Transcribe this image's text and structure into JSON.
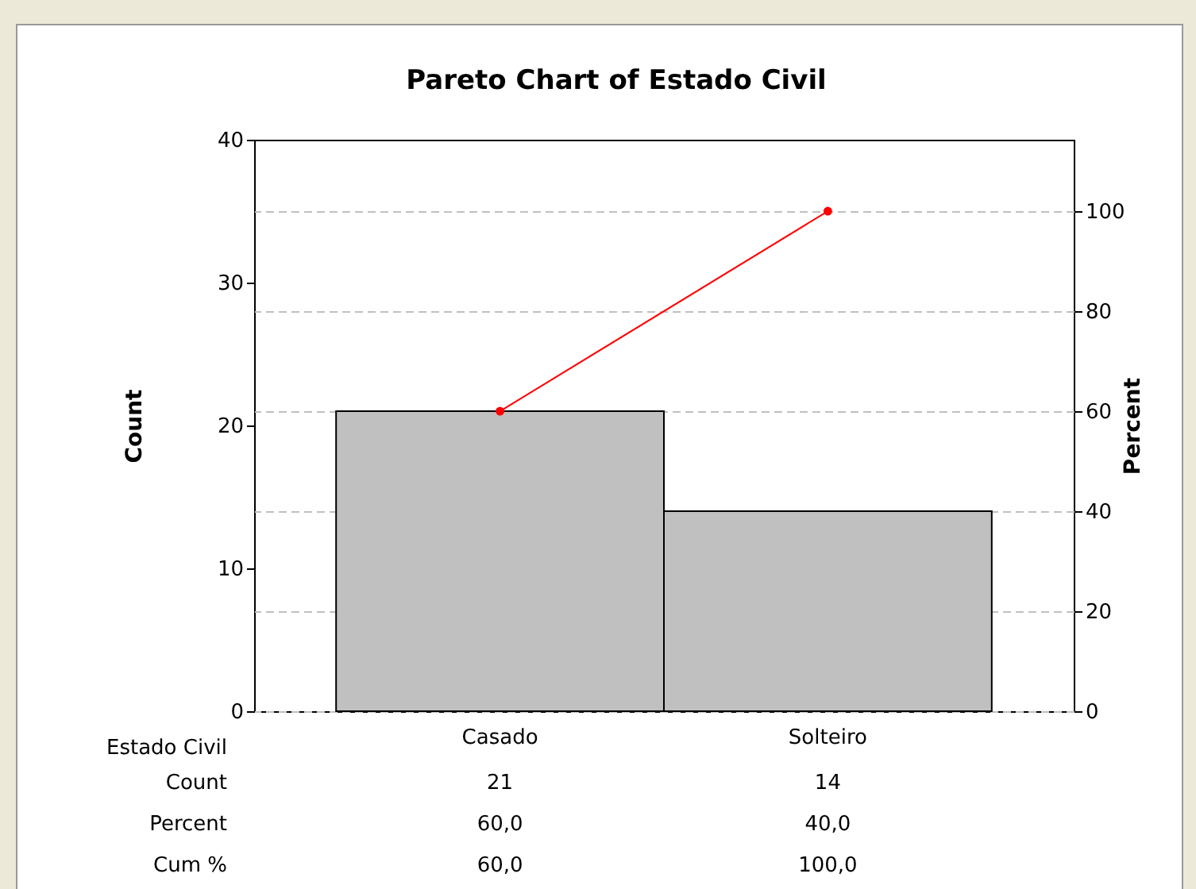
{
  "chart_data": {
    "type": "bar",
    "title": "Pareto Chart of Estado Civil",
    "xlabel": "Estado Civil",
    "ylabel": "Count",
    "y2label": "Percent",
    "categories": [
      "Casado",
      "Solteiro"
    ],
    "series": [
      {
        "color": "#c0c0c0",
        "values": [
          21,
          14
        ],
        "value_labels": [
          "21",
          "14"
        ]
      },
      {
        "type": "line",
        "axis": "y2",
        "color": "#ff0000",
        "values": [
          60,
          100
        ],
        "value_labels": [
          "60,0",
          "100,0"
        ]
      }
    ],
    "annotations": [
      "Count",
      "Percent",
      "60,0",
      "40,0",
      "Cum %"
    ],
    "ylim": [
      0,
      40
    ],
    "yticks": [
      0,
      10,
      20,
      30,
      40
    ],
    "y2lim": [
      0,
      114.3
    ],
    "y2ticks": [
      0,
      20,
      40,
      60,
      80,
      100
    ],
    "grid": true,
    "marker": "circle"
  }
}
